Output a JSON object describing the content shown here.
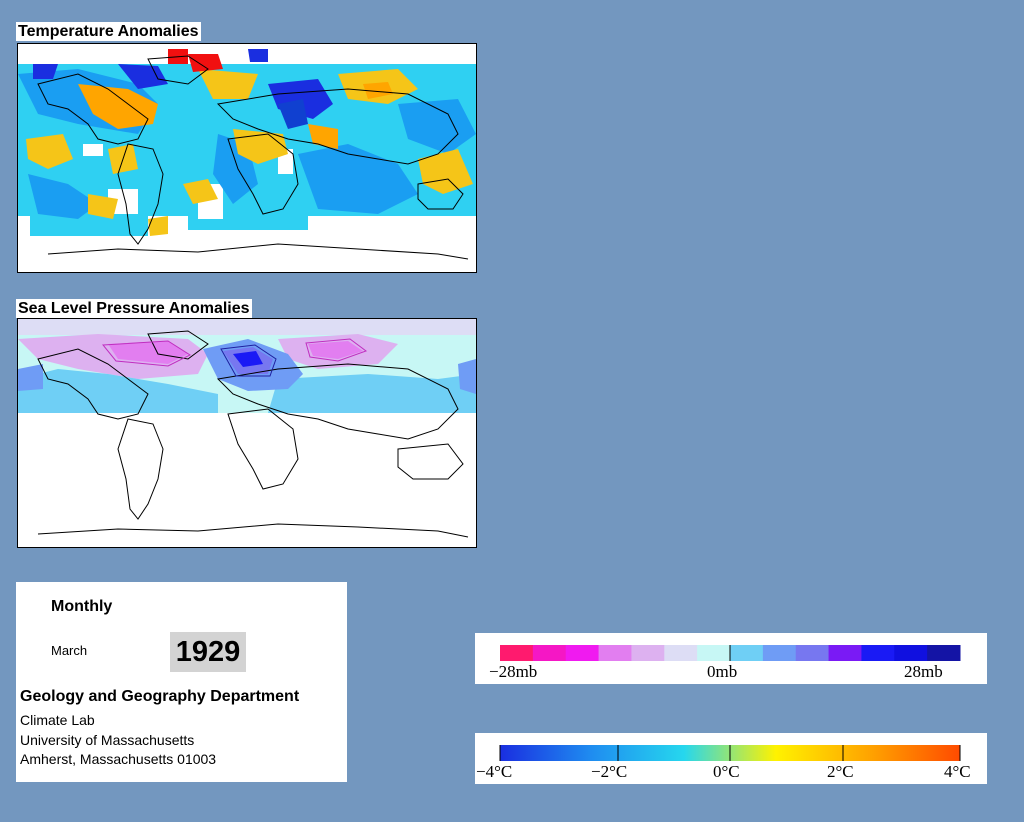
{
  "panels": {
    "temperature": {
      "title": "Temperature Anomalies"
    },
    "pressure": {
      "title": "Sea Level Pressure Anomalies"
    }
  },
  "info": {
    "period": "Monthly",
    "month": "March",
    "year": "1929",
    "department": "Geology and Geography Department",
    "address": [
      "Climate Lab",
      "University of Massachusetts",
      "Amherst, Massachusetts 01003"
    ]
  },
  "legends": {
    "pressure": {
      "labels": [
        "−28mb",
        "0mb",
        "28mb"
      ],
      "colors": [
        "#ff1a6e",
        "#f517c5",
        "#f01af0",
        "#e27ef0",
        "#ddb1f0",
        "#ddddf5",
        "#c7f7f5",
        "#6fcff5",
        "#6f9cf5",
        "#7777f0",
        "#7a1af5",
        "#1a1af5",
        "#1010e0",
        "#1414a5"
      ]
    },
    "temperature": {
      "labels": [
        "−4°C",
        "−2°C",
        "0°C",
        "2°C",
        "4°C"
      ],
      "colors": [
        "#1a2ee0",
        "#1f8df0",
        "#26d7ee",
        "#fff200",
        "#ffa500",
        "#ff4b00"
      ]
    }
  },
  "colors": {
    "background": "#7397bf",
    "warm": "#f5c518",
    "cold": "#1a9ef2",
    "neutral": "#2fd0f2"
  }
}
